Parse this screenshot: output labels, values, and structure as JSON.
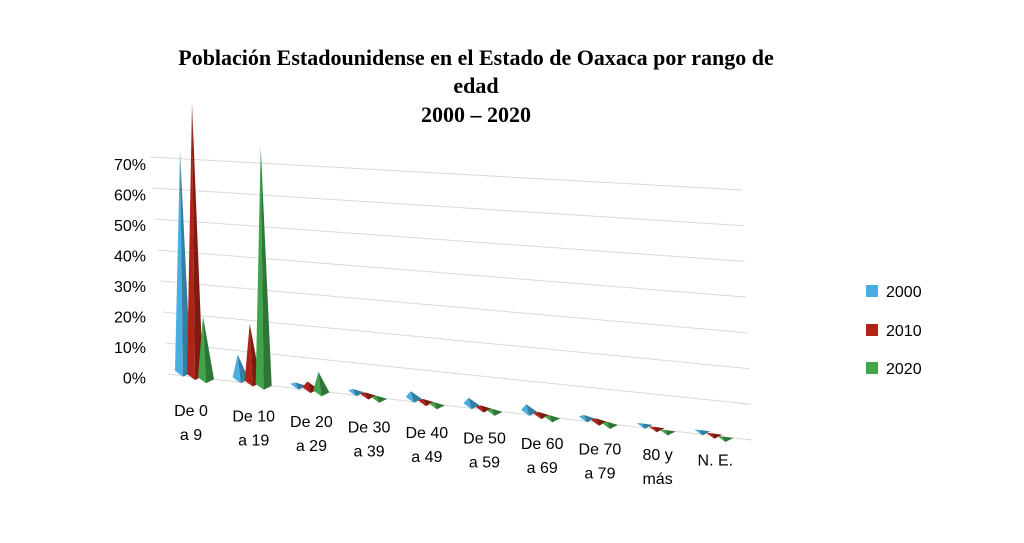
{
  "chart_data": {
    "type": "bar",
    "title_lines": [
      "Población Estadounidense en el Estado de Oaxaca por rango de",
      "edad",
      "2000 – 2020"
    ],
    "categories": [
      [
        "De 0",
        "a 9"
      ],
      [
        "De 10",
        "a 19"
      ],
      [
        "De 20",
        "a 29"
      ],
      [
        "De 30",
        "a 39"
      ],
      [
        "De 40",
        "a 49"
      ],
      [
        "De 50",
        "a 59"
      ],
      [
        "De 60",
        "a 69"
      ],
      [
        "De 70",
        "a 79"
      ],
      [
        "80 y",
        "más"
      ],
      [
        "N. E."
      ]
    ],
    "series": [
      {
        "name": "2000",
        "color": "#4aaee0",
        "values": [
          0.52,
          0.06,
          0.01,
          0.01,
          0.02,
          0.02,
          0.02,
          0.01,
          0.0,
          0.0
        ]
      },
      {
        "name": "2010",
        "color": "#b02418",
        "values": [
          0.64,
          0.14,
          0.02,
          0.01,
          0.01,
          0.01,
          0.01,
          0.01,
          0.0,
          0.0
        ]
      },
      {
        "name": "2020",
        "color": "#3fa44a",
        "values": [
          0.15,
          0.56,
          0.05,
          0.01,
          0.01,
          0.01,
          0.01,
          0.01,
          0.0,
          0.0
        ]
      }
    ],
    "y_ticks": [
      "70%",
      "60%",
      "50%",
      "40%",
      "30%",
      "20%",
      "10%",
      "0%"
    ],
    "ylim": [
      0,
      0.7
    ],
    "grid": true,
    "legend_position": "right"
  }
}
